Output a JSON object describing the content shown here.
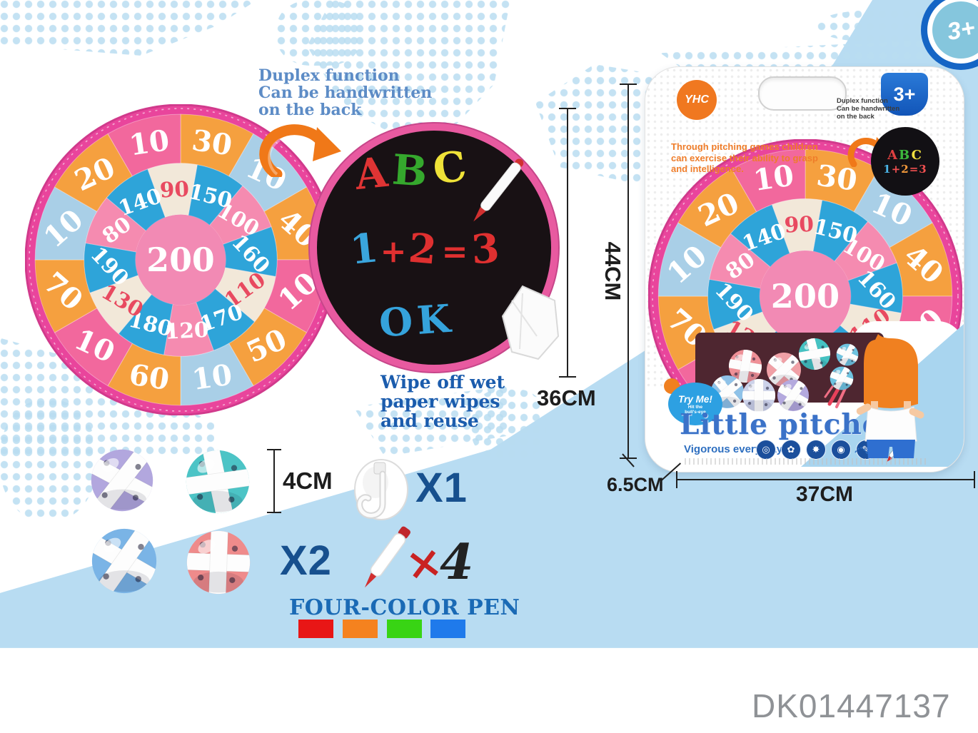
{
  "product_code": "DK01447137",
  "age_badge": "3+",
  "notes": {
    "duplex_front": [
      "Duplex function",
      "Can be handwritten",
      "on the back"
    ],
    "wipe": [
      "Wipe off wet",
      "paper wipes",
      "and reuse"
    ]
  },
  "dimensions": {
    "board_height": "36CM",
    "package_height": "44CM",
    "package_width": "37CM",
    "package_depth": "6.5CM",
    "ball_size": "4CM"
  },
  "dartboard": {
    "center_value": "200",
    "outer": [
      {
        "v": "30",
        "c": "orange"
      },
      {
        "v": "10",
        "c": "lightblue"
      },
      {
        "v": "40",
        "c": "orange"
      },
      {
        "v": "10",
        "c": "pink"
      },
      {
        "v": "50",
        "c": "orange"
      },
      {
        "v": "10",
        "c": "lightblue"
      },
      {
        "v": "60",
        "c": "orange"
      },
      {
        "v": "10",
        "c": "pink"
      },
      {
        "v": "70",
        "c": "orange"
      },
      {
        "v": "10",
        "c": "lightblue"
      },
      {
        "v": "20",
        "c": "orange"
      },
      {
        "v": "10",
        "c": "pink"
      }
    ],
    "inner": [
      {
        "v": "90",
        "c": "cream"
      },
      {
        "v": "150",
        "c": "blue"
      },
      {
        "v": "100",
        "c": "pinkin"
      },
      {
        "v": "160",
        "c": "blue"
      },
      {
        "v": "110",
        "c": "cream"
      },
      {
        "v": "170",
        "c": "blue"
      },
      {
        "v": "120",
        "c": "pinkin"
      },
      {
        "v": "180",
        "c": "blue"
      },
      {
        "v": "130",
        "c": "cream"
      },
      {
        "v": "190",
        "c": "blue"
      },
      {
        "v": "80",
        "c": "pinkin"
      },
      {
        "v": "140",
        "c": "blue"
      }
    ],
    "palette": {
      "orange": "#f5a03f",
      "lightblue": "#a9cfe7",
      "pink": "#f2689d",
      "blue": "#2ea4d9",
      "cream": "#f2e8d9",
      "pinkin": "#f58bb0",
      "center": "#f28ab4",
      "rim": "#e9459c",
      "red_text": "#e84a60"
    }
  },
  "back_board": {
    "letters": [
      {
        "ch": "A",
        "color": "#df3434"
      },
      {
        "ch": "B",
        "color": "#35a82d"
      },
      {
        "ch": "C",
        "color": "#efe238"
      }
    ],
    "equation": [
      {
        "ch": "1",
        "color": "#3aa5dd"
      },
      {
        "ch": "+",
        "color": "#df3030"
      },
      {
        "ch": "2",
        "color": "#df3030"
      },
      {
        "ch": "=",
        "color": "#df3030"
      },
      {
        "ch": "3",
        "color": "#df3030"
      }
    ],
    "ok": {
      "text": "OK",
      "color": "#35a3dc"
    }
  },
  "package": {
    "logo": "YHC",
    "age": "3+",
    "description": [
      "Through pitching games children",
      "can exercise their ability to grasp",
      "and intelligence."
    ],
    "duplex": [
      "Duplex function",
      "Can be handwritten",
      "on the back"
    ],
    "mini_board": {
      "line1": [
        {
          "ch": "A",
          "color": "#e04040"
        },
        {
          "ch": "B",
          "color": "#3db83d"
        },
        {
          "ch": "C",
          "color": "#f2e040"
        }
      ],
      "line2": [
        {
          "ch": "1",
          "color": "#4ab4e6"
        },
        {
          "ch": "+",
          "color": "#f25050"
        },
        {
          "ch": "2",
          "color": "#f59b3c"
        },
        {
          "ch": "=",
          "color": "#f25050"
        },
        {
          "ch": "3",
          "color": "#f25050"
        }
      ]
    },
    "try_me": {
      "title": "Try Me!",
      "line1": "Hit the",
      "line2": "bull's-eye"
    },
    "title": "Little pitcher",
    "subtitle": "Vigorous every day",
    "icons": [
      "target",
      "petals",
      "star",
      "eye",
      "pencil"
    ]
  },
  "contents": {
    "ball_count": "X2",
    "hook_count": "X1",
    "pen_multiplier": "×",
    "pen_count": "4",
    "pen_title": "FOUR-COLOR PEN",
    "pen_colors": [
      "#e81616",
      "#f5821f",
      "#38d414",
      "#1f7aeb"
    ],
    "ball_colors": {
      "purple": "#b2a7de",
      "teal": "#4cc4c6",
      "blue": "#7ab4e6",
      "coral": "#ef8b8b"
    },
    "packed_ball_colors": [
      "#ef9097",
      "#f0a0a6",
      "#45c2c2",
      "#6fc3e0",
      "#8fc2e8",
      "#ccd2ea",
      "#b4a9de"
    ]
  }
}
